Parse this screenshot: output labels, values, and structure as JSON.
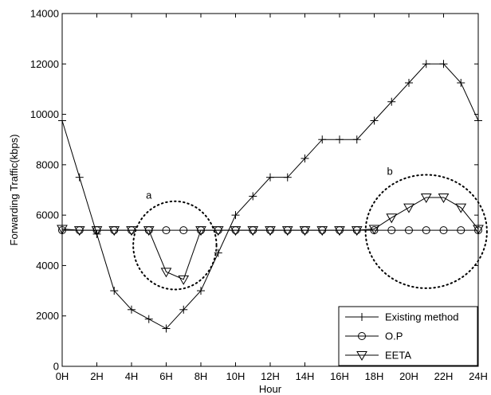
{
  "chart_data": {
    "type": "line",
    "xlabel": "Hour",
    "ylabel": "Forwarding Traffic(kbps)",
    "xlim": [
      0,
      24
    ],
    "ylim": [
      0,
      14000
    ],
    "x_ticks": [
      0,
      2,
      4,
      6,
      8,
      10,
      12,
      14,
      16,
      18,
      20,
      22,
      24
    ],
    "x_tick_labels": [
      "0H",
      "2H",
      "4H",
      "6H",
      "8H",
      "10H",
      "12H",
      "14H",
      "16H",
      "18H",
      "20H",
      "22H",
      "24H"
    ],
    "y_ticks": [
      0,
      2000,
      4000,
      6000,
      8000,
      10000,
      12000,
      14000
    ],
    "y_tick_labels": [
      "0",
      "2000",
      "4000",
      "6000",
      "8000",
      "10000",
      "12000",
      "14000"
    ],
    "grid": false,
    "legend_position": "bottom-right",
    "x": [
      0,
      1,
      2,
      3,
      4,
      5,
      6,
      7,
      8,
      9,
      10,
      11,
      12,
      13,
      14,
      15,
      16,
      17,
      18,
      19,
      20,
      21,
      22,
      23,
      24
    ],
    "series": [
      {
        "name": "Existing method",
        "marker": "plus",
        "values": [
          9750,
          7500,
          5250,
          3000,
          2250,
          1875,
          1500,
          2250,
          3000,
          4500,
          6000,
          6750,
          7500,
          7500,
          8250,
          9000,
          9000,
          9000,
          9750,
          10500,
          11250,
          12000,
          12000,
          11250,
          9750
        ]
      },
      {
        "name": "O.P",
        "marker": "circle",
        "values": [
          5400,
          5400,
          5400,
          5400,
          5400,
          5400,
          5400,
          5400,
          5400,
          5400,
          5400,
          5400,
          5400,
          5400,
          5400,
          5400,
          5400,
          5400,
          5400,
          5400,
          5400,
          5400,
          5400,
          5400,
          5400
        ]
      },
      {
        "name": "EETA",
        "marker": "triangle-down",
        "values": [
          5450,
          5400,
          5400,
          5400,
          5400,
          5400,
          3750,
          3450,
          5400,
          5400,
          5400,
          5400,
          5400,
          5400,
          5400,
          5400,
          5400,
          5400,
          5450,
          5900,
          6300,
          6700,
          6700,
          6300,
          5450
        ]
      }
    ],
    "annotations": [
      {
        "label": "a",
        "cx": 6.5,
        "cy": 4800,
        "rx": 2.4,
        "ry": 1750,
        "label_x": 5.0,
        "label_y": 6650
      },
      {
        "label": "b",
        "cx": 21.0,
        "cy": 5350,
        "rx": 3.5,
        "ry": 2250,
        "label_x": 18.9,
        "label_y": 7600
      }
    ],
    "colors": {
      "line": "#000000",
      "background": "#ffffff"
    }
  }
}
